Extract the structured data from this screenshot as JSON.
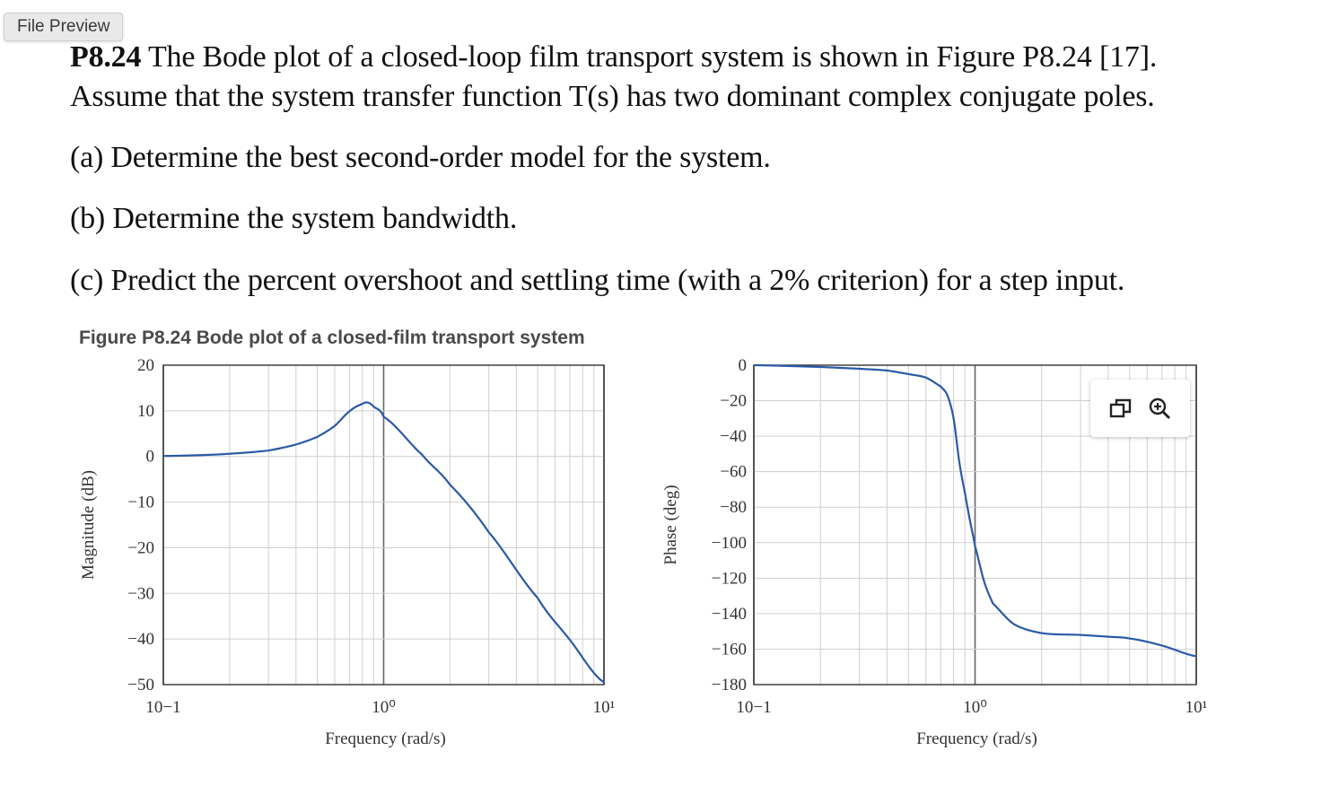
{
  "preview_tooltip": "File Preview",
  "problem": {
    "number": "P8.24",
    "line1": "The Bode plot of a closed-loop film transport system is shown in Figure P8.24 [17].",
    "line2": "Assume that the system transfer function T(s) has two dominant complex conjugate poles.",
    "part_a": "(a) Determine the best second-order model for the system.",
    "part_b": "(b) Determine the system bandwidth.",
    "part_c": "(c) Predict the percent overshoot and settling time (with a 2% criterion) for a step input."
  },
  "figure": {
    "caption_bold": "Figure P8.24",
    "caption_rest": "Bode plot of a closed-film transport system"
  },
  "toolbar": {
    "icons": [
      "copy-icon",
      "zoom-in-icon"
    ]
  },
  "chart_data": [
    {
      "type": "line",
      "xscale": "log",
      "xlim": [
        0.1,
        10
      ],
      "ylim": [
        -50,
        20
      ],
      "xlabel": "Frequency (rad/s)",
      "ylabel": "Magnitude (dB)",
      "xticks": [
        "10−1",
        "10⁰",
        "10¹"
      ],
      "yticks": [
        "20",
        "10",
        "0",
        "−10",
        "−20",
        "−30",
        "−40",
        "−50"
      ],
      "grid": true,
      "series_color": "#2b5aa6",
      "x": [
        0.1,
        0.15,
        0.2,
        0.3,
        0.4,
        0.5,
        0.6,
        0.7,
        0.8,
        0.85,
        0.9,
        1.0,
        1.5,
        2.0,
        3.0,
        5.0,
        7.0,
        10.0
      ],
      "y": [
        0.1,
        0.3,
        0.6,
        1.3,
        2.6,
        4.3,
        6.7,
        9.9,
        11.5,
        11.8,
        10.9,
        8.7,
        0.3,
        -6.2,
        -16.6,
        -31.0,
        -40.2,
        -49.5
      ]
    },
    {
      "type": "line",
      "xscale": "log",
      "xlim": [
        0.1,
        10
      ],
      "ylim": [
        -180,
        0
      ],
      "xlabel": "Frequency (rad/s)",
      "ylabel": "Phase (deg)",
      "xticks": [
        "10−1",
        "10⁰",
        "10¹"
      ],
      "yticks": [
        "0",
        "−20",
        "−40",
        "−60",
        "−80",
        "−100",
        "−120",
        "−140",
        "−160",
        "−180"
      ],
      "grid": true,
      "series_color": "#2b5aa6",
      "x": [
        0.1,
        0.2,
        0.3,
        0.4,
        0.5,
        0.6,
        0.7,
        0.75,
        0.8,
        0.85,
        0.9,
        0.95,
        1.0,
        1.1,
        1.2,
        1.5,
        2.0,
        3.0,
        4.0,
        5.0,
        7.0,
        10.0
      ],
      "y": [
        0,
        -1,
        -2,
        -3,
        -5,
        -7,
        -12,
        -17,
        -30,
        -55,
        -72,
        -88,
        -102,
        -122,
        -134,
        -146,
        -151,
        -152,
        -153,
        -154,
        -158,
        -164
      ]
    }
  ]
}
